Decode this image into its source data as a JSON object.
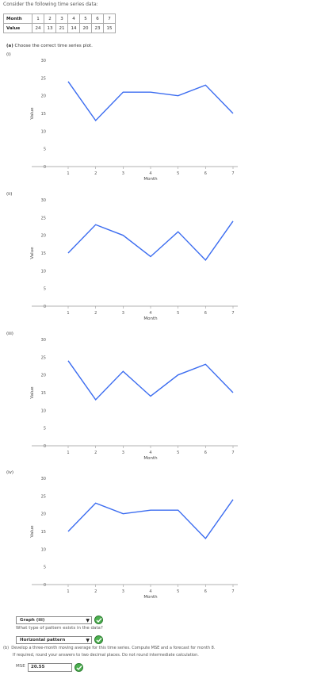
{
  "intro": "Consider the following time series data:",
  "table": {
    "month_label": "Month",
    "value_label": "Value",
    "months": [
      "1",
      "2",
      "3",
      "4",
      "5",
      "6",
      "7"
    ],
    "values": [
      "24",
      "13",
      "21",
      "14",
      "20",
      "23",
      "15"
    ]
  },
  "part_a": {
    "letter": "(a)",
    "prompt": "Choose the correct time series plot."
  },
  "chart_data": [
    {
      "type": "line",
      "roman": "(i)",
      "x": [
        1,
        2,
        3,
        4,
        5,
        6,
        7
      ],
      "y": [
        24,
        13,
        21,
        21,
        20,
        23,
        15
      ],
      "xlabel": "Month",
      "ylabel": "Value",
      "ylim": [
        0,
        30
      ],
      "yticks": [
        0,
        5,
        10,
        15,
        20,
        25,
        30
      ],
      "xticks": [
        1,
        2,
        3,
        4,
        5,
        6,
        7
      ],
      "line_color": "#3b6cf0"
    },
    {
      "type": "line",
      "roman": "(ii)",
      "x": [
        1,
        2,
        3,
        4,
        5,
        6,
        7
      ],
      "y": [
        15,
        23,
        20,
        14,
        21,
        13,
        24
      ],
      "xlabel": "Month",
      "ylabel": "Value",
      "ylim": [
        0,
        30
      ],
      "yticks": [
        0,
        5,
        10,
        15,
        20,
        25,
        30
      ],
      "xticks": [
        1,
        2,
        3,
        4,
        5,
        6,
        7
      ],
      "line_color": "#3b6cf0"
    },
    {
      "type": "line",
      "roman": "(iii)",
      "x": [
        1,
        2,
        3,
        4,
        5,
        6,
        7
      ],
      "y": [
        24,
        13,
        21,
        14,
        20,
        23,
        15
      ],
      "xlabel": "Month",
      "ylabel": "Value",
      "ylim": [
        0,
        30
      ],
      "yticks": [
        0,
        5,
        10,
        15,
        20,
        25,
        30
      ],
      "xticks": [
        1,
        2,
        3,
        4,
        5,
        6,
        7
      ],
      "line_color": "#3b6cf0"
    },
    {
      "type": "line",
      "roman": "(iv)",
      "x": [
        1,
        2,
        3,
        4,
        5,
        6,
        7
      ],
      "y": [
        15,
        23,
        20,
        21,
        21,
        13,
        24
      ],
      "xlabel": "Month",
      "ylabel": "Value",
      "ylim": [
        0,
        30
      ],
      "yticks": [
        0,
        5,
        10,
        15,
        20,
        25,
        30
      ],
      "xticks": [
        1,
        2,
        3,
        4,
        5,
        6,
        7
      ],
      "line_color": "#3b6cf0"
    }
  ],
  "graph_select": {
    "value": "Graph (iii)"
  },
  "pattern_question": "What type of pattern exists in the data?",
  "pattern_select": {
    "value": "Horizontal pattern"
  },
  "part_b": {
    "letter": "(b)",
    "line1": "Develop a three-month moving average for this time series. Compute MSE and a forecast for month 8.",
    "line2": "If required, round your answers to two decimal places. Do not round intermediate calculation."
  },
  "mse": {
    "label": "MSE",
    "value": "20.55"
  },
  "colors": {
    "line": "#3b6cf0",
    "check": "#4caf50"
  }
}
